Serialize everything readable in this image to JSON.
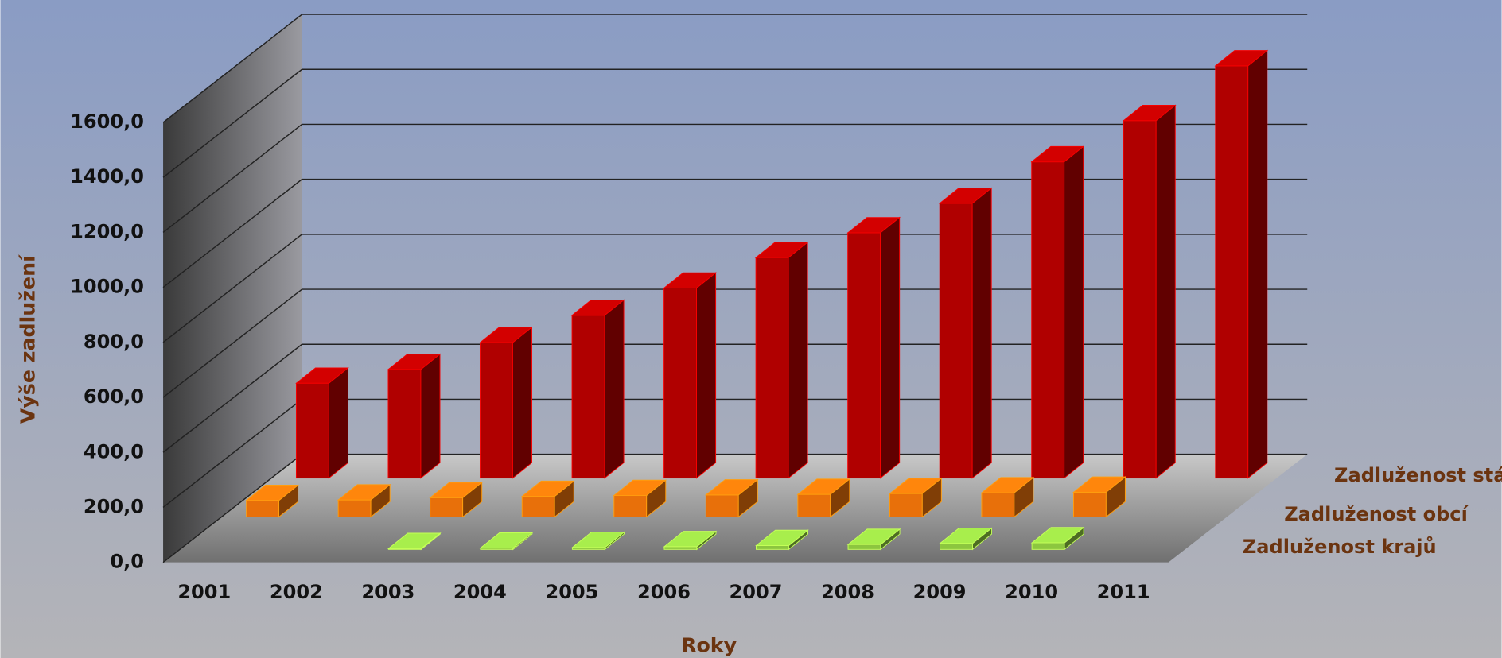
{
  "chart_data": {
    "type": "bar3d",
    "xlabel": "Roky",
    "ylabel": "Výše zadlužení",
    "categories": [
      "2001",
      "2002",
      "2003",
      "2004",
      "2005",
      "2006",
      "2007",
      "2008",
      "2009",
      "2010",
      "2011"
    ],
    "series": [
      {
        "name": "Zadluženost státu",
        "color": "#b00000",
        "values": [
          345,
          395,
          493,
          592,
          691,
          802,
          892,
          999,
          1150,
          1300,
          1499
        ]
      },
      {
        "name": "Zadluženost obcí",
        "color": "#e8700a",
        "values": [
          60,
          62,
          70,
          75,
          78,
          80,
          82,
          85,
          88,
          90,
          null
        ]
      },
      {
        "name": "Zadluženost krajů",
        "color": "#8cc63f",
        "values": [
          null,
          null,
          3,
          5,
          7,
          10,
          14,
          18,
          22,
          24,
          null
        ]
      }
    ],
    "ylim": [
      0,
      1600
    ],
    "yticks": [
      {
        "value": 0,
        "label": "0,0"
      },
      {
        "value": 200,
        "label": "200,0"
      },
      {
        "value": 400,
        "label": "400,0"
      },
      {
        "value": 600,
        "label": "600,0"
      },
      {
        "value": 800,
        "label": "800,0"
      },
      {
        "value": 1000,
        "label": "1000,0"
      },
      {
        "value": 1200,
        "label": "1200,0"
      },
      {
        "value": 1400,
        "label": "1400,0"
      },
      {
        "value": 1600,
        "label": "1600,0"
      }
    ],
    "grid": true
  }
}
